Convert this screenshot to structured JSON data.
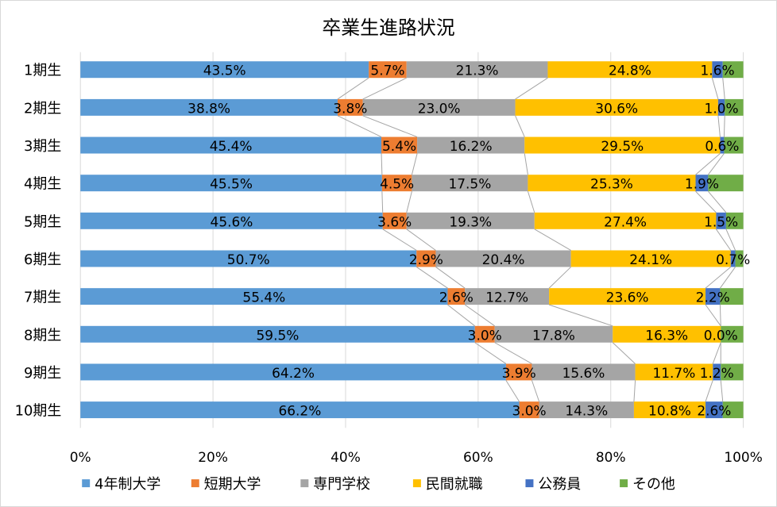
{
  "chart_data": {
    "type": "bar",
    "stacked": "percent",
    "orientation": "horizontal",
    "title": "卒業生進路状況",
    "categories": [
      "1期生",
      "2期生",
      "3期生",
      "4期生",
      "5期生",
      "6期生",
      "7期生",
      "8期生",
      "9期生",
      "10期生"
    ],
    "series": [
      {
        "name": "4年制大学",
        "color": "#5b9bd5",
        "values": [
          43.5,
          38.8,
          45.4,
          45.5,
          45.6,
          50.7,
          55.4,
          59.5,
          64.2,
          66.2
        ],
        "labeled": true
      },
      {
        "name": "短期大学",
        "color": "#ed7d31",
        "values": [
          5.7,
          3.8,
          5.4,
          4.5,
          3.6,
          2.9,
          2.6,
          3.0,
          3.9,
          3.0
        ],
        "labeled": true
      },
      {
        "name": "専門学校",
        "color": "#a5a5a5",
        "values": [
          21.3,
          23.0,
          16.2,
          17.5,
          19.3,
          20.4,
          12.7,
          17.8,
          15.6,
          14.3
        ],
        "labeled": true
      },
      {
        "name": "民間就職",
        "color": "#ffc000",
        "values": [
          24.8,
          30.6,
          29.5,
          25.3,
          27.4,
          24.1,
          23.6,
          16.3,
          11.7,
          10.8
        ],
        "labeled": true
      },
      {
        "name": "公務員",
        "color": "#4472c4",
        "values": [
          1.6,
          1.0,
          0.6,
          1.9,
          1.5,
          0.7,
          2.2,
          0.0,
          1.2,
          2.6
        ],
        "labeled": true
      },
      {
        "name": "その他",
        "color": "#70ad47",
        "values": [
          3.1,
          2.8,
          2.9,
          5.3,
          2.6,
          1.2,
          3.5,
          3.4,
          3.4,
          3.1
        ],
        "labeled": false
      }
    ],
    "xlim": [
      0,
      100
    ],
    "xticks": [
      "0%",
      "20%",
      "40%",
      "60%",
      "80%",
      "100%"
    ],
    "grid": true,
    "series_lines": true,
    "legend": "bottom"
  }
}
